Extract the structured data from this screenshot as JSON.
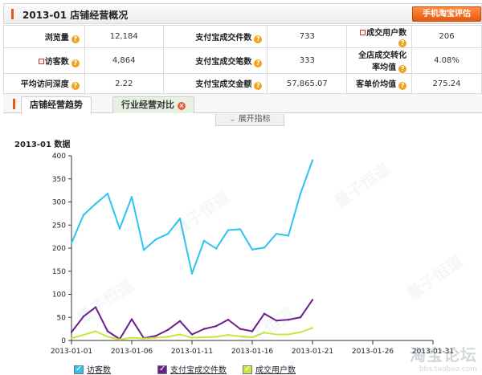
{
  "header": {
    "title": "2013-01 店铺经营概况",
    "mobile_button": "手机淘宝评估"
  },
  "stats": [
    [
      {
        "label": "浏览量",
        "value": "12,184"
      },
      {
        "label": "支付宝成交件数",
        "value": "733"
      },
      {
        "label": "成交用户数",
        "value": "206",
        "flag": true
      }
    ],
    [
      {
        "label": "访客数",
        "value": "4,864",
        "flag": true
      },
      {
        "label": "支付宝成交笔数",
        "value": "333"
      },
      {
        "label": "全店成交转化率均值",
        "value": "4.08%"
      }
    ],
    [
      {
        "label": "平均访问深度",
        "value": "2.22"
      },
      {
        "label": "支付宝成交金额",
        "value": "57,865.07"
      },
      {
        "label": "客单价均值",
        "value": "275.24"
      }
    ]
  ],
  "tabs": {
    "active": "店铺经营趋势",
    "inactive": "行业经营对比"
  },
  "expand_label": "展开指标",
  "watermark": {
    "text": "量子恒道",
    "logo": "淘宝论坛",
    "url": "bbs.taobao.com"
  },
  "chart_data": {
    "type": "line",
    "title": "2013-01 数据",
    "x": [
      "2013-01-01",
      "2013-01-02",
      "2013-01-03",
      "2013-01-04",
      "2013-01-05",
      "2013-01-06",
      "2013-01-07",
      "2013-01-08",
      "2013-01-09",
      "2013-01-10",
      "2013-01-11",
      "2013-01-12",
      "2013-01-13",
      "2013-01-14",
      "2013-01-15",
      "2013-01-16",
      "2013-01-17",
      "2013-01-18",
      "2013-01-19",
      "2013-01-20",
      "2013-01-21"
    ],
    "xticks": [
      "2013-01-01",
      "2013-01-06",
      "2013-01-11",
      "2013-01-16",
      "2013-01-21",
      "2013-01-26",
      "2013-01-31"
    ],
    "xrange": [
      "2013-01-01",
      "2013-01-31"
    ],
    "ylim": [
      0,
      400
    ],
    "yticks": [
      0,
      50,
      100,
      150,
      200,
      250,
      300,
      350,
      400
    ],
    "grid": false,
    "legend_position": "bottom",
    "series": [
      {
        "name": "访客数",
        "color": "#2ec3f0",
        "values": [
          211,
          272,
          296,
          318,
          242,
          311,
          196,
          219,
          231,
          264,
          145,
          216,
          199,
          239,
          241,
          197,
          201,
          231,
          227,
          318,
          390
        ]
      },
      {
        "name": "支付宝成交件数",
        "color": "#6a1f8c",
        "values": [
          18,
          52,
          72,
          20,
          3,
          46,
          5,
          10,
          23,
          42,
          13,
          25,
          31,
          45,
          25,
          20,
          58,
          43,
          45,
          50,
          88
        ]
      },
      {
        "name": "成交用户数",
        "color": "#c7e83a",
        "values": [
          5,
          12,
          20,
          8,
          2,
          6,
          4,
          6,
          8,
          13,
          6,
          7,
          8,
          12,
          9,
          7,
          17,
          13,
          13,
          18,
          27
        ]
      }
    ]
  }
}
